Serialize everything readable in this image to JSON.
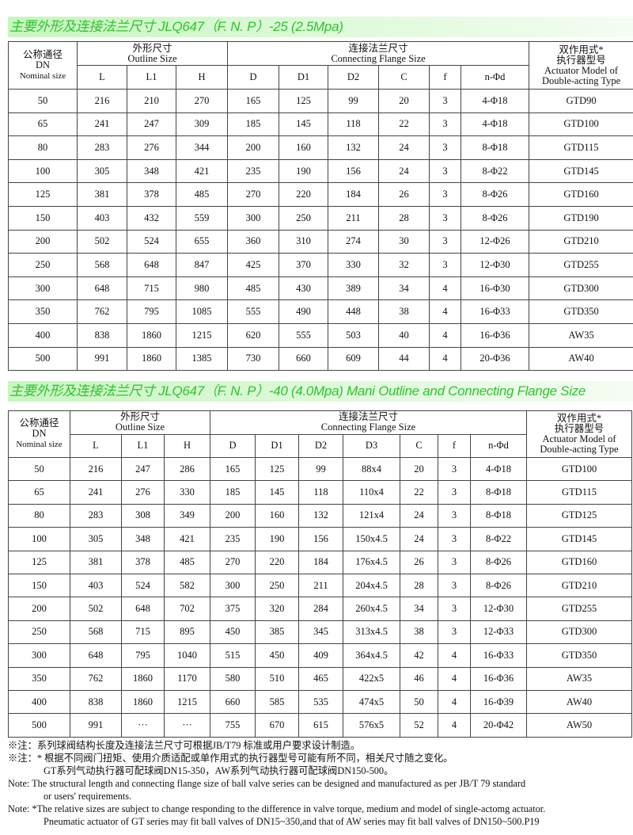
{
  "table1": {
    "title": "主要外形及连接法兰尺寸 JLQ647（F. N. P）-25 (2.5Mpa)",
    "h_dn_cn": "公称通径",
    "h_dn": "DN",
    "h_dn_en": "Nominal size",
    "h_outline_cn": "外形尺寸",
    "h_outline_en": "Outline Size",
    "h_flange_cn": "连接法兰尺寸",
    "h_flange_en": "Connecting Flange Size",
    "h_act_cn1": "双作用式*",
    "h_act_cn2": "执行器型号",
    "h_act_en1": "Actuator Model of",
    "h_act_en2": "Double-acting Type",
    "columns": [
      "L",
      "L1",
      "H",
      "D",
      "D1",
      "D2",
      "C",
      "f",
      "n-Φd"
    ],
    "rows": [
      [
        "50",
        "216",
        "210",
        "270",
        "165",
        "125",
        "99",
        "20",
        "3",
        "4-Φ18",
        "GTD90"
      ],
      [
        "65",
        "241",
        "247",
        "309",
        "185",
        "145",
        "118",
        "22",
        "3",
        "4-Φ18",
        "GTD100"
      ],
      [
        "80",
        "283",
        "276",
        "344",
        "200",
        "160",
        "132",
        "24",
        "3",
        "8-Φ18",
        "GTD115"
      ],
      [
        "100",
        "305",
        "348",
        "421",
        "235",
        "190",
        "156",
        "24",
        "3",
        "8-Φ22",
        "GTD145"
      ],
      [
        "125",
        "381",
        "378",
        "485",
        "270",
        "220",
        "184",
        "26",
        "3",
        "8-Φ26",
        "GTD160"
      ],
      [
        "150",
        "403",
        "432",
        "559",
        "300",
        "250",
        "211",
        "28",
        "3",
        "8-Φ26",
        "GTD190"
      ],
      [
        "200",
        "502",
        "524",
        "655",
        "360",
        "310",
        "274",
        "30",
        "3",
        "12-Φ26",
        "GTD210"
      ],
      [
        "250",
        "568",
        "648",
        "847",
        "425",
        "370",
        "330",
        "32",
        "3",
        "12-Φ30",
        "GTD255"
      ],
      [
        "300",
        "648",
        "715",
        "980",
        "485",
        "430",
        "389",
        "34",
        "4",
        "16-Φ30",
        "GTD300"
      ],
      [
        "350",
        "762",
        "795",
        "1085",
        "555",
        "490",
        "448",
        "38",
        "4",
        "16-Φ33",
        "GTD350"
      ],
      [
        "400",
        "838",
        "1860",
        "1215",
        "620",
        "555",
        "503",
        "40",
        "4",
        "16-Φ36",
        "AW35"
      ],
      [
        "500",
        "991",
        "1860",
        "1385",
        "730",
        "660",
        "609",
        "44",
        "4",
        "20-Φ36",
        "AW40"
      ]
    ]
  },
  "table2": {
    "title": "主要外形及连接法兰尺寸 JLQ647（F. N. P）-40 (4.0Mpa) Mani Outline and Connecting Flange Size",
    "h_dn_cn": "公称通径",
    "h_dn": "DN",
    "h_dn_en": "Nominal size",
    "h_outline_cn": "外形尺寸",
    "h_outline_en": "Outline Size",
    "h_flange_cn": "连接法兰尺寸",
    "h_flange_en": "Connecting Flange Size",
    "h_act_cn1": "双作用式*",
    "h_act_cn2": "执行器型号",
    "h_act_en1": "Actuator Model of",
    "h_act_en2": "Double-acting Type",
    "columns": [
      "L",
      "L1",
      "H",
      "D",
      "D1",
      "D2",
      "D3",
      "C",
      "f",
      "n-Φd"
    ],
    "rows": [
      [
        "50",
        "216",
        "247",
        "286",
        "165",
        "125",
        "99",
        "88x4",
        "20",
        "3",
        "4-Φ18",
        "GTD100"
      ],
      [
        "65",
        "241",
        "276",
        "330",
        "185",
        "145",
        "118",
        "110x4",
        "22",
        "3",
        "8-Φ18",
        "GTD115"
      ],
      [
        "80",
        "283",
        "308",
        "349",
        "200",
        "160",
        "132",
        "121x4",
        "24",
        "3",
        "8-Φ18",
        "GTD125"
      ],
      [
        "100",
        "305",
        "348",
        "421",
        "235",
        "190",
        "156",
        "150x4.5",
        "24",
        "3",
        "8-Φ22",
        "GTD145"
      ],
      [
        "125",
        "381",
        "378",
        "485",
        "270",
        "220",
        "184",
        "176x4.5",
        "26",
        "3",
        "8-Φ26",
        "GTD160"
      ],
      [
        "150",
        "403",
        "524",
        "582",
        "300",
        "250",
        "211",
        "204x4.5",
        "28",
        "3",
        "8-Φ26",
        "GTD210"
      ],
      [
        "200",
        "502",
        "648",
        "702",
        "375",
        "320",
        "284",
        "260x4.5",
        "34",
        "3",
        "12-Φ30",
        "GTD255"
      ],
      [
        "250",
        "568",
        "715",
        "895",
        "450",
        "385",
        "345",
        "313x4.5",
        "38",
        "3",
        "12-Φ33",
        "GTD300"
      ],
      [
        "300",
        "648",
        "795",
        "1040",
        "515",
        "450",
        "409",
        "364x4.5",
        "42",
        "4",
        "16-Φ33",
        "GTD350"
      ],
      [
        "350",
        "762",
        "1860",
        "1170",
        "580",
        "510",
        "465",
        "422x5",
        "46",
        "4",
        "16-Φ36",
        "AW35"
      ],
      [
        "400",
        "838",
        "1860",
        "1215",
        "660",
        "585",
        "535",
        "474x5",
        "50",
        "4",
        "16-Φ39",
        "AW40"
      ],
      [
        "500",
        "991",
        "···",
        "···",
        "755",
        "670",
        "615",
        "576x5",
        "52",
        "4",
        "20-Φ42",
        "AW50"
      ]
    ]
  },
  "notes": [
    "※注：系列球阀结构长度及连接法兰尺寸可根据JB/T79 标准或用户要求设计制造。",
    "※注：* 根据不同阀门扭矩、使用介质适配或单作用式的执行器型号可能有所不同，相关尺寸随之变化。",
    "GT系列气动执行器可配球阀DN15-350，AW系列气动执行器可配球阀DN150-500。",
    "Note: The structural length and connecting flange size of ball valve series can be designed and manufactured as per JB/T 79 standard",
    "or users' requirements.",
    "Note: *The relative sizes are subject to change responding to the difference in valve torque, medium and model of single-actomg actuator.",
    "Pneumatic actuator of GT series may fit ball valves of DN15~350,and that of AW series may fit ball valves of DN150~500.P19"
  ]
}
